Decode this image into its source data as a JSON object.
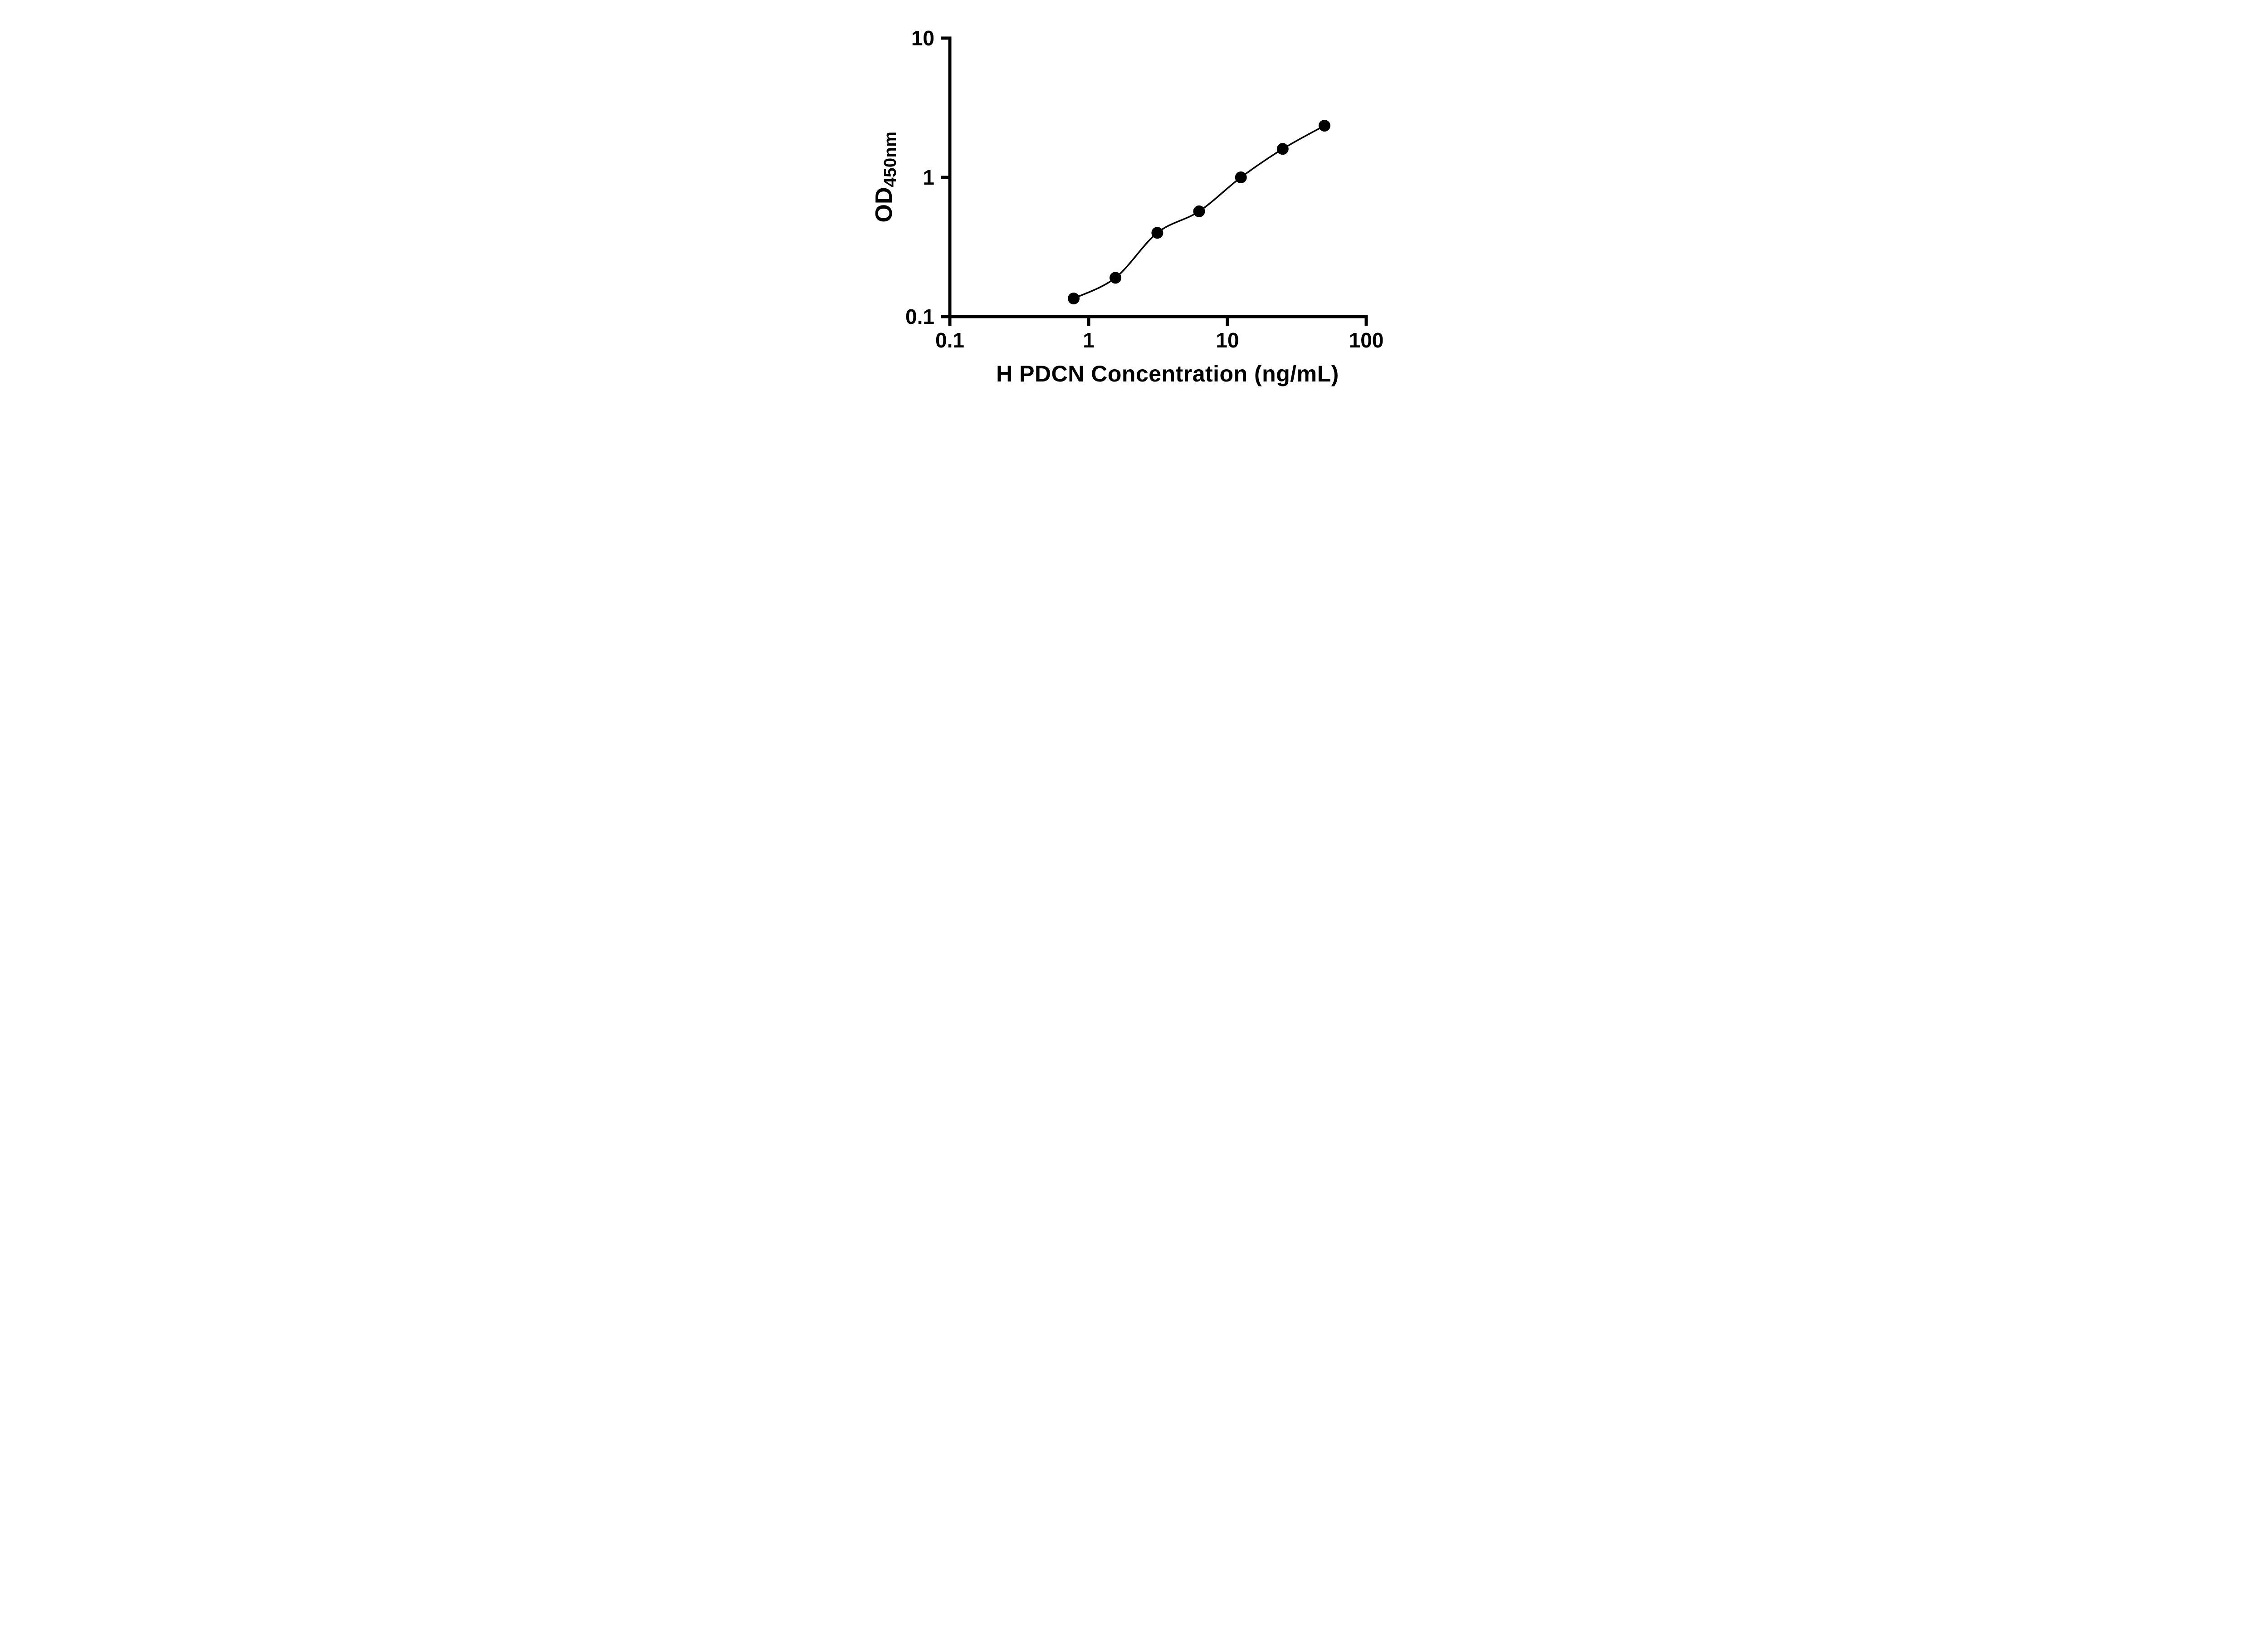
{
  "chart_data": {
    "type": "line",
    "series": [
      {
        "x": [
          0.78,
          1.56,
          3.125,
          6.25,
          12.5,
          25,
          50
        ],
        "y": [
          0.135,
          0.19,
          0.4,
          0.57,
          1.0,
          1.6,
          2.35
        ]
      }
    ],
    "title": "",
    "xlabel": "H PDCN Concentration (ng/mL)",
    "ylabel": "OD450nm",
    "ylabel_main": "OD",
    "ylabel_sub": "450nm",
    "xscale": "log",
    "yscale": "log",
    "xlim": [
      0.1,
      100
    ],
    "ylim": [
      0.1,
      10
    ],
    "x_ticks": [
      0.1,
      1,
      10,
      100
    ],
    "x_tick_labels": [
      "0.1",
      "1",
      "10",
      "100"
    ],
    "y_ticks": [
      0.1,
      1,
      10
    ],
    "y_tick_labels": [
      "0.1",
      "1",
      "10"
    ],
    "grid": false,
    "legend_position": "none",
    "marker": "circle",
    "marker_color": "#000000",
    "line_color": "#000000",
    "axis_color": "#000000",
    "text_color": "#000000",
    "background": "#ffffff"
  }
}
